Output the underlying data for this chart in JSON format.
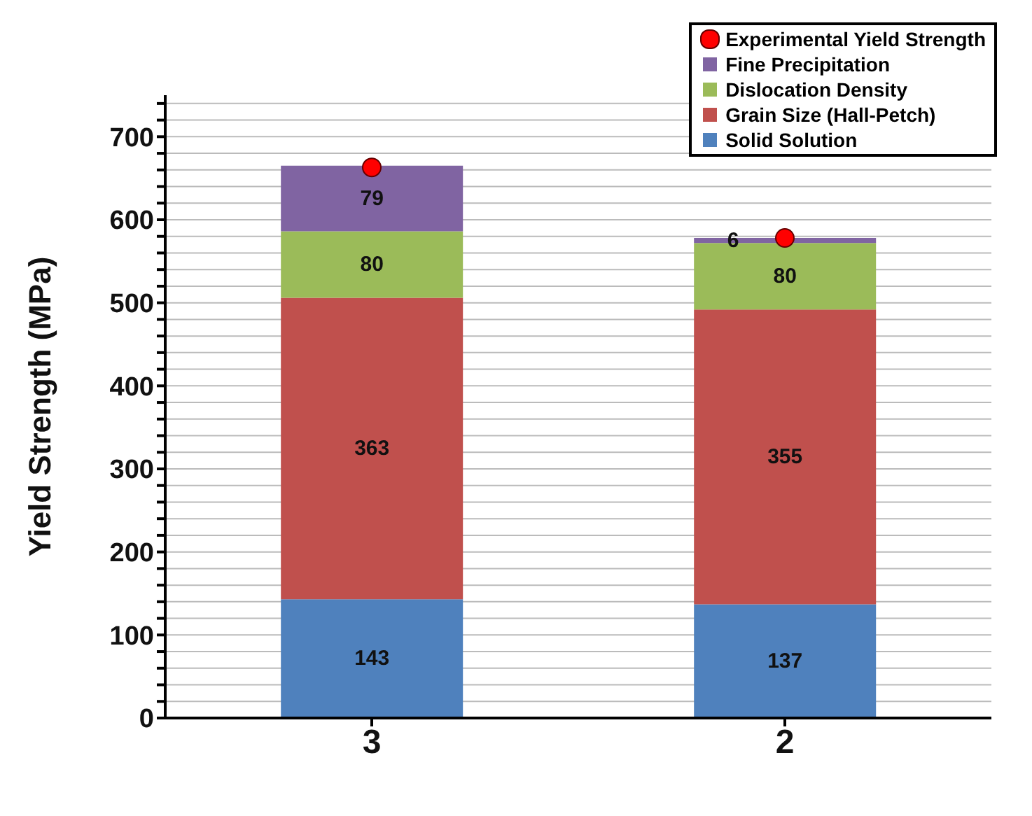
{
  "chart_data": {
    "type": "bar",
    "stacked": true,
    "ylabel": "Yield Strength (MPa)",
    "categories": [
      "3",
      "2"
    ],
    "ylim": [
      0,
      750
    ],
    "yticks": [
      0,
      {
        "value": 20,
        "label": null
      },
      {
        "value": 40,
        "label": null
      },
      {
        "value": 60,
        "label": null
      },
      {
        "value": 80,
        "label": null
      },
      100,
      {
        "value": 120,
        "label": null
      },
      {
        "value": 140,
        "label": null
      },
      {
        "value": 160,
        "label": null
      },
      {
        "value": 180,
        "label": null
      },
      200,
      {
        "value": 220,
        "label": null
      },
      {
        "value": 240,
        "label": null
      },
      {
        "value": 260,
        "label": null
      },
      {
        "value": 280,
        "label": null
      },
      300,
      {
        "value": 320,
        "label": null
      },
      {
        "value": 340,
        "label": null
      },
      {
        "value": 360,
        "label": null
      },
      {
        "value": 380,
        "label": null
      },
      400,
      {
        "value": 420,
        "label": null
      },
      {
        "value": 440,
        "label": null
      },
      {
        "value": 460,
        "label": null
      },
      {
        "value": 480,
        "label": null
      },
      500,
      {
        "value": 520,
        "label": null
      },
      {
        "value": 540,
        "label": null
      },
      {
        "value": 560,
        "label": null
      },
      {
        "value": 580,
        "label": null
      },
      600,
      {
        "value": 620,
        "label": null
      },
      {
        "value": 640,
        "label": null
      },
      {
        "value": 660,
        "label": null
      },
      {
        "value": 680,
        "label": null
      },
      700,
      {
        "value": 720,
        "label": null
      },
      {
        "value": 740,
        "label": null
      }
    ],
    "grid": "y",
    "legend": "top right",
    "series": [
      {
        "name": "Solid Solution",
        "color": "#4f81bd",
        "values": [
          143,
          137
        ],
        "value_labels": [
          "143",
          "137"
        ]
      },
      {
        "name": "Grain Size (Hall-Petch)",
        "color": "#c0504d",
        "values": [
          363,
          355
        ],
        "value_labels": [
          "363",
          "355"
        ]
      },
      {
        "name": "Dislocation Density",
        "color": "#9bbb59",
        "values": [
          80,
          80
        ],
        "value_labels": [
          "80",
          "80"
        ]
      },
      {
        "name": "Fine Precipitation",
        "color": "#8064a2",
        "values": [
          79,
          6
        ],
        "value_labels": [
          "79",
          "6"
        ]
      },
      {
        "name": "Experimental Yield Strength",
        "type": "scatter",
        "color": "#ff0000",
        "x": [
          "3",
          "2"
        ],
        "values": [
          663,
          578
        ],
        "marker": "circle"
      }
    ]
  }
}
